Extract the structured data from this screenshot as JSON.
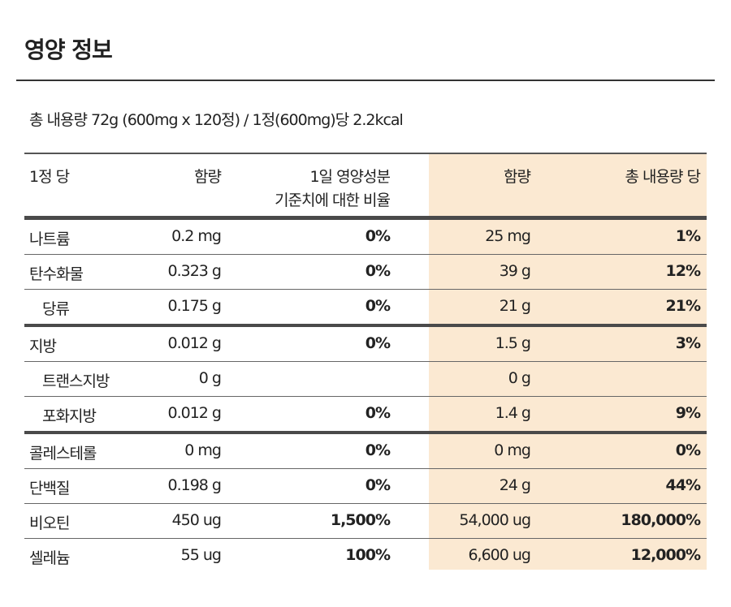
{
  "title": "영양 정보",
  "subtitle": "총 내용량 72g (600mg x 120정) / 1정(600mg)당 2.2kcal",
  "highlight_color": "#fbe9d2",
  "header": {
    "per_tablet": "1정 당",
    "amount": "함량",
    "daily_line1": "1일 영양성분",
    "daily_line2": "기준치에 대한 비율",
    "total_amount": "함량",
    "per_total": "총 내용량 당"
  },
  "rows": [
    {
      "name": "나트륨",
      "amount": "0.2 mg",
      "pct": "0%",
      "total": "25 mg",
      "total_pct": "1%"
    },
    {
      "name": "탄수화물",
      "amount": "0.323 g",
      "pct": "0%",
      "total": "39 g",
      "total_pct": "12%"
    },
    {
      "name": "당류",
      "amount": "0.175 g",
      "pct": "0%",
      "total": "21 g",
      "total_pct": "21%"
    },
    {
      "name": "지방",
      "amount": "0.012 g",
      "pct": "0%",
      "total": "1.5 g",
      "total_pct": "3%"
    },
    {
      "name": "트랜스지방",
      "amount": "0 g",
      "pct": "",
      "total": "0 g",
      "total_pct": ""
    },
    {
      "name": "포화지방",
      "amount": "0.012 g",
      "pct": "0%",
      "total": "1.4 g",
      "total_pct": "9%"
    },
    {
      "name": "콜레스테롤",
      "amount": "0 mg",
      "pct": "0%",
      "total": "0 mg",
      "total_pct": "0%"
    },
    {
      "name": "단백질",
      "amount": "0.198 g",
      "pct": "0%",
      "total": "24 g",
      "total_pct": "44%"
    },
    {
      "name": "비오틴",
      "amount": "450 ug",
      "pct": "1,500%",
      "total": "54,000 ug",
      "total_pct": "180,000%"
    },
    {
      "name": "셀레늄",
      "amount": "55 ug",
      "pct": "100%",
      "total": "6,600 ug",
      "total_pct": "12,000%"
    }
  ]
}
